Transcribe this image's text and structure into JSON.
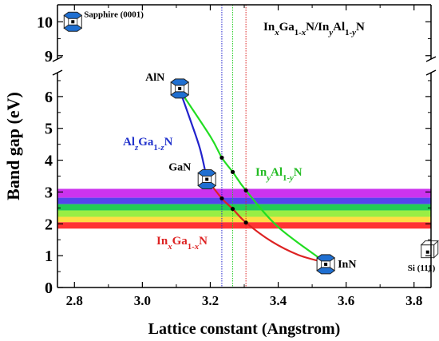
{
  "chart_data": {
    "type": "line",
    "title": "InxGa1-xN/InyAl1-yN",
    "xlabel": "Lattice constant (Angstrom)",
    "ylabel": "Band gap (eV)",
    "xlim": [
      2.75,
      3.85
    ],
    "ylim_lower": [
      0,
      6.75
    ],
    "ylim_upper": [
      8.9,
      10.5
    ],
    "axis_break": "y between 6.75 and 8.9",
    "x_ticks": [
      "2.8",
      "3.0",
      "3.2",
      "3.4",
      "3.6",
      "3.8"
    ],
    "x_tick_values": [
      2.8,
      3.0,
      3.2,
      3.4,
      3.6,
      3.8
    ],
    "y_ticks": [
      "0",
      "1",
      "2",
      "3",
      "4",
      "5",
      "6",
      "9",
      "10"
    ],
    "y_tick_values": [
      0,
      1,
      2,
      3,
      4,
      5,
      6,
      9,
      10
    ],
    "legend": "none",
    "grid": false,
    "materials": [
      {
        "name": "Sapphire (0001)",
        "x": 2.8,
        "y": 10.0
      },
      {
        "name": "AlN",
        "x": 3.11,
        "y": 6.2
      },
      {
        "name": "GaN",
        "x": 3.19,
        "y": 3.4
      },
      {
        "name": "InN",
        "x": 3.54,
        "y": 0.78
      },
      {
        "name": "Si (111)",
        "x": 3.84,
        "y": 1.1
      }
    ],
    "series": [
      {
        "name": "AlzGa1-zN",
        "color": "#2222cc",
        "x": [
          3.11,
          3.14,
          3.17,
          3.19
        ],
        "y": [
          6.2,
          5.3,
          4.35,
          3.4
        ]
      },
      {
        "name": "InxGa1-xN",
        "color": "#dd2222",
        "x": [
          3.19,
          3.234,
          3.266,
          3.305,
          3.38,
          3.46,
          3.54
        ],
        "y": [
          3.4,
          2.8,
          2.47,
          2.04,
          1.45,
          1.02,
          0.78
        ]
      },
      {
        "name": "InyAl1-yN",
        "color": "#22dd22",
        "x": [
          3.11,
          3.2,
          3.234,
          3.266,
          3.305,
          3.4,
          3.54
        ],
        "y": [
          6.2,
          4.75,
          4.08,
          3.63,
          3.05,
          1.9,
          0.78
        ]
      }
    ],
    "vertical_lines": [
      {
        "x": 3.234,
        "color": "#2222cc"
      },
      {
        "x": 3.266,
        "color": "#22cc22"
      },
      {
        "x": 3.305,
        "color": "#dd2222"
      }
    ],
    "markers": [
      {
        "x": 3.234,
        "y": 4.08
      },
      {
        "x": 3.266,
        "y": 3.63
      },
      {
        "x": 3.305,
        "y": 3.05
      },
      {
        "x": 3.234,
        "y": 2.8
      },
      {
        "x": 3.266,
        "y": 2.47
      },
      {
        "x": 3.305,
        "y": 2.04
      }
    ],
    "color_bands": [
      {
        "y0": 2.82,
        "y1": 3.1,
        "color": "#cc33ee"
      },
      {
        "y0": 2.62,
        "y1": 2.82,
        "color": "#5544ee"
      },
      {
        "y0": 2.42,
        "y1": 2.62,
        "color": "#22cc55"
      },
      {
        "y0": 2.22,
        "y1": 2.42,
        "color": "#99ee44"
      },
      {
        "y0": 2.05,
        "y1": 2.22,
        "color": "#ffdd44"
      },
      {
        "y0": 1.85,
        "y1": 2.05,
        "color": "#ff3333"
      }
    ]
  }
}
